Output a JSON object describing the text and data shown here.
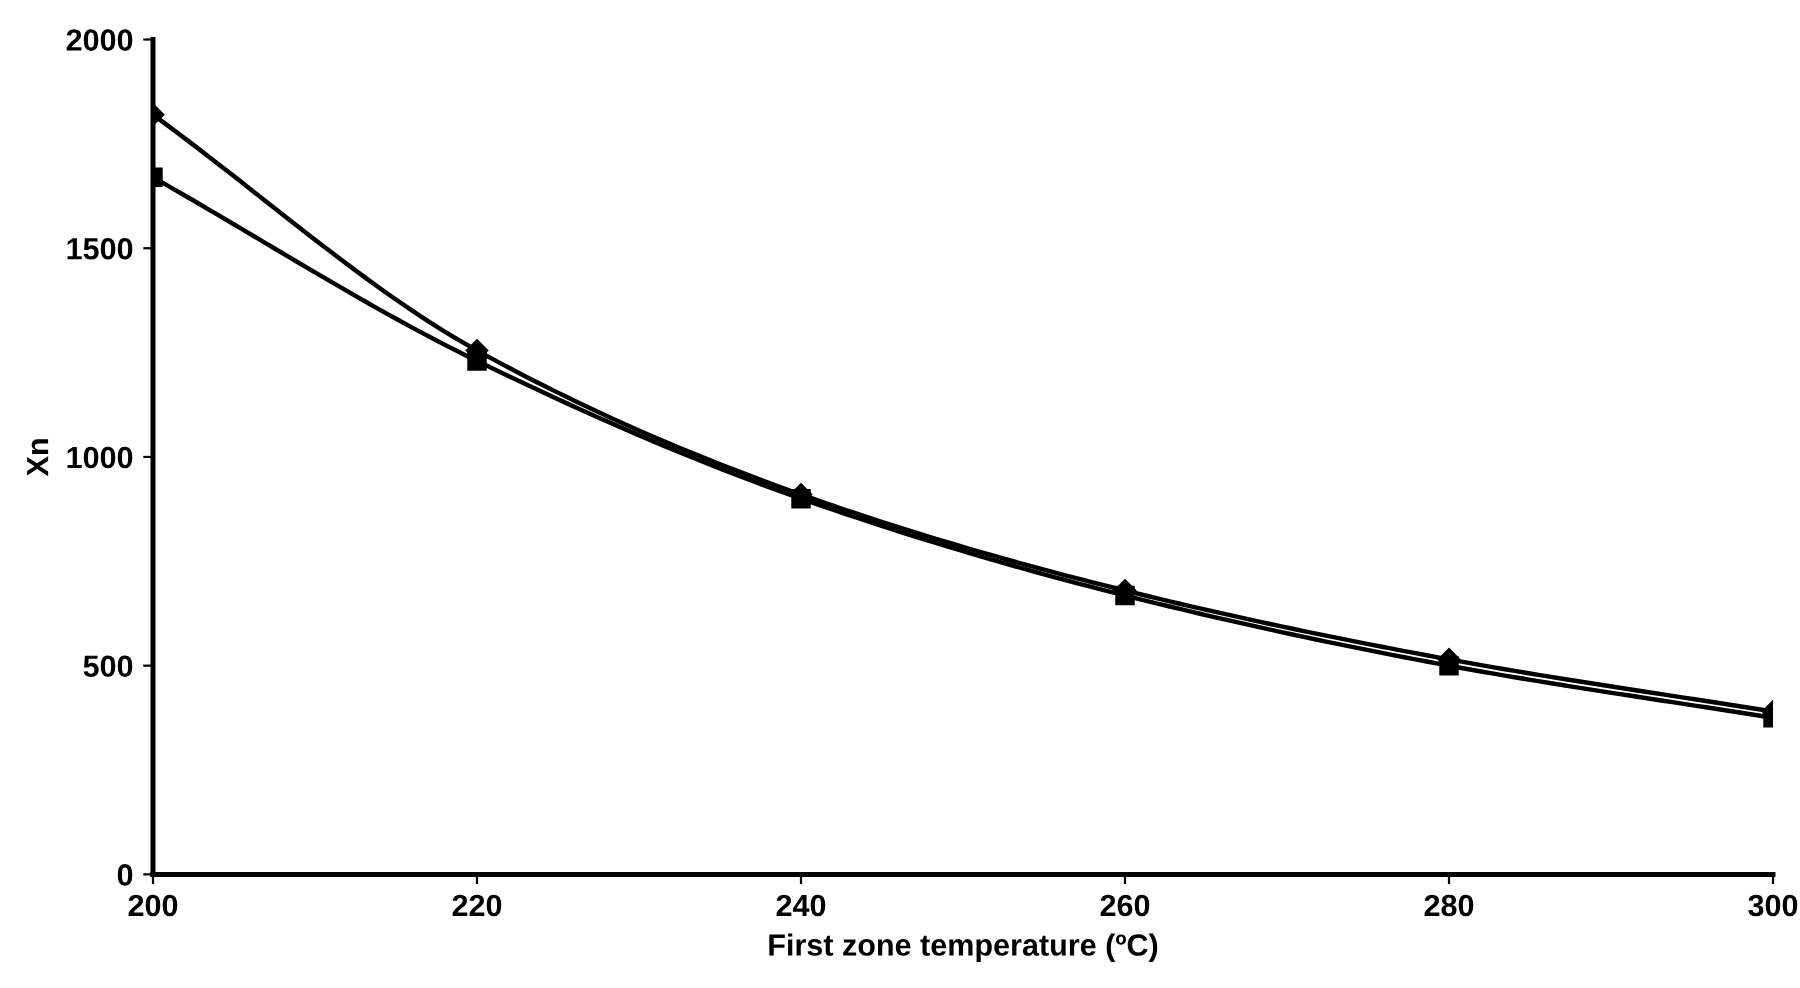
{
  "chart_data": {
    "type": "line",
    "xlabel": "First zone temperature (ºC)",
    "ylabel": "Xn",
    "x": [
      200,
      220,
      240,
      260,
      280,
      300
    ],
    "series": [
      {
        "color": "#000000",
        "marker": "diamond",
        "values": [
          1820,
          1255,
          910,
          680,
          515,
          390
        ]
      },
      {
        "color": "#000000",
        "marker": "square",
        "values": [
          1670,
          1230,
          900,
          668,
          500,
          375
        ]
      }
    ],
    "xlim": [
      200,
      300
    ],
    "xticks": [
      200,
      220,
      240,
      260,
      280,
      300
    ],
    "ylim": [
      0,
      2000
    ],
    "yticks": [
      0,
      500,
      1000,
      1500,
      2000
    ],
    "grid": false,
    "legend": false,
    "line_style": "solid"
  }
}
